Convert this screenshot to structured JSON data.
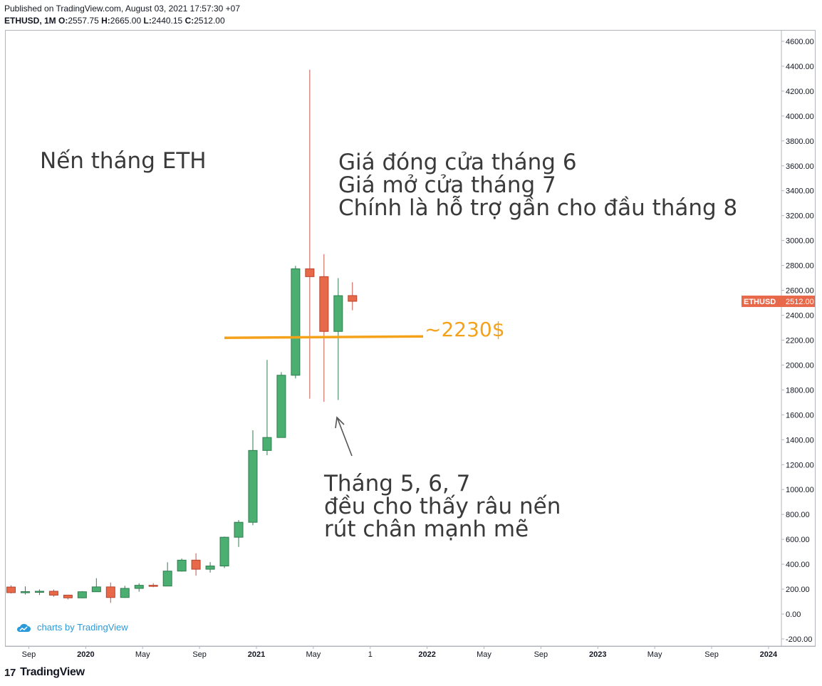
{
  "header": {
    "published": "Published on TradingView.com, August 03, 2021 17:57:30 +07",
    "symbol": "ETHUSD, 1M",
    "o_label": "O:",
    "o_value": "2557.75",
    "h_label": "H:",
    "h_value": "2665.00",
    "l_label": "L:",
    "l_value": "2440.15",
    "c_label": "C:",
    "c_value": "2512.00"
  },
  "watermark_text": "charts by TradingView",
  "footer_brand": "TradingView",
  "annotations": {
    "title": "Nến tháng ETH",
    "support_note": [
      "Giá đóng cửa tháng 6",
      "Giá mở cửa tháng 7",
      "Chính là hỗ trợ gần cho đầu tháng 8"
    ],
    "support_label": "~2230$",
    "wick_note": [
      "Tháng 5, 6, 7",
      "đều cho thấy râu nến",
      "rút chân mạnh mẽ"
    ]
  },
  "colors": {
    "up": "#4caf72",
    "down": "#e8684a",
    "support_line": "#f5a21b",
    "price_tag": "#e8684a",
    "annotation": "#3a3a3a"
  },
  "chart_data": {
    "type": "candlestick",
    "symbol": "ETHUSD",
    "timeframe": "1M",
    "y_axis_ticks": [
      4600,
      4400,
      4200,
      4000,
      3800,
      3600,
      3400,
      3200,
      3000,
      2800,
      2600,
      2400,
      2200,
      2000,
      1800,
      1600,
      1400,
      1200,
      1000,
      800,
      600,
      400,
      200,
      0,
      -200
    ],
    "y_axis_labels": [
      "4600.00",
      "4400.00",
      "4200.00",
      "4000.00",
      "3800.00",
      "3600.00",
      "3400.00",
      "3200.00",
      "3000.00",
      "2800.00",
      "2600.00",
      "2400.00",
      "2200.00",
      "2000.00",
      "1800.00",
      "1600.00",
      "1400.00",
      "1200.00",
      "1000.00",
      "800.00",
      "600.00",
      "400.00",
      "200.00",
      "0.00",
      "-200.00"
    ],
    "ylim": [
      -240,
      4750
    ],
    "x_axis_labels": [
      "Sep",
      "2020",
      "May",
      "Sep",
      "2021",
      "May",
      "1",
      "2022",
      "May",
      "Sep",
      "2023",
      "May",
      "Sep",
      "2024"
    ],
    "current_price_tag": {
      "label": "ETHUSD",
      "value": "2512.00",
      "price": 2512
    },
    "support_level": 2230,
    "candles": [
      {
        "month": "2019-08",
        "open": 217,
        "high": 230,
        "low": 165,
        "close": 172
      },
      {
        "month": "2019-09",
        "open": 172,
        "high": 222,
        "low": 157,
        "close": 180
      },
      {
        "month": "2019-10",
        "open": 180,
        "high": 198,
        "low": 153,
        "close": 183
      },
      {
        "month": "2019-11",
        "open": 183,
        "high": 197,
        "low": 139,
        "close": 152
      },
      {
        "month": "2019-12",
        "open": 152,
        "high": 155,
        "low": 117,
        "close": 130
      },
      {
        "month": "2020-01",
        "open": 130,
        "high": 184,
        "low": 127,
        "close": 179
      },
      {
        "month": "2020-02",
        "open": 179,
        "high": 288,
        "low": 178,
        "close": 218
      },
      {
        "month": "2020-03",
        "open": 218,
        "high": 253,
        "low": 90,
        "close": 133
      },
      {
        "month": "2020-04",
        "open": 133,
        "high": 227,
        "low": 130,
        "close": 206
      },
      {
        "month": "2020-05",
        "open": 206,
        "high": 247,
        "low": 180,
        "close": 231
      },
      {
        "month": "2020-06",
        "open": 231,
        "high": 248,
        "low": 216,
        "close": 225
      },
      {
        "month": "2020-07",
        "open": 225,
        "high": 416,
        "low": 223,
        "close": 345
      },
      {
        "month": "2020-08",
        "open": 345,
        "high": 446,
        "low": 341,
        "close": 433
      },
      {
        "month": "2020-09",
        "open": 433,
        "high": 488,
        "low": 308,
        "close": 360
      },
      {
        "month": "2020-10",
        "open": 360,
        "high": 417,
        "low": 333,
        "close": 386
      },
      {
        "month": "2020-11",
        "open": 386,
        "high": 622,
        "low": 369,
        "close": 617
      },
      {
        "month": "2020-12",
        "open": 617,
        "high": 755,
        "low": 539,
        "close": 737
      },
      {
        "month": "2021-01",
        "open": 737,
        "high": 1476,
        "low": 714,
        "close": 1314
      },
      {
        "month": "2021-02",
        "open": 1314,
        "high": 2041,
        "low": 1276,
        "close": 1418
      },
      {
        "month": "2021-03",
        "open": 1418,
        "high": 1943,
        "low": 1421,
        "close": 1918
      },
      {
        "month": "2021-04",
        "open": 1918,
        "high": 2797,
        "low": 1892,
        "close": 2773
      },
      {
        "month": "2021-05",
        "open": 2773,
        "high": 4372,
        "low": 1730,
        "close": 2710
      },
      {
        "month": "2021-06",
        "open": 2710,
        "high": 2891,
        "low": 1704,
        "close": 2270
      },
      {
        "month": "2021-07",
        "open": 2270,
        "high": 2698,
        "low": 1719,
        "close": 2557
      },
      {
        "month": "2021-08",
        "open": 2557.75,
        "high": 2665,
        "low": 2440.15,
        "close": 2512
      }
    ]
  }
}
